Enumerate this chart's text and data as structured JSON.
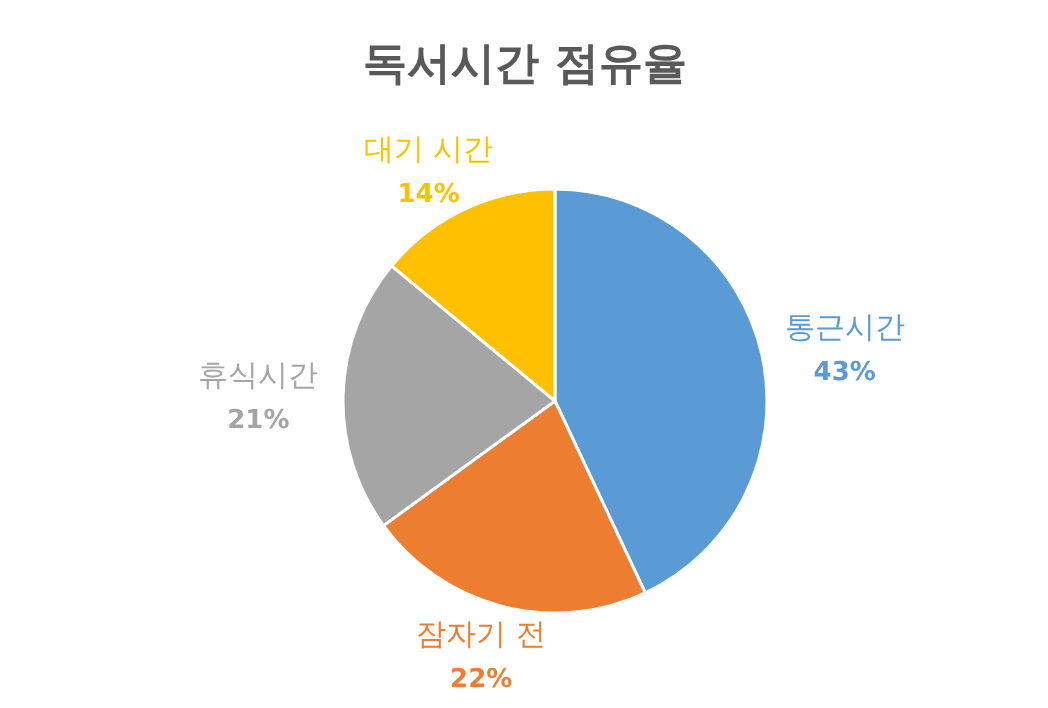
{
  "chart_data": {
    "type": "pie",
    "title": "독서시간 점유율",
    "categories": [
      "통근시간",
      "잠자기 전",
      "휴식시간",
      "대기 시간"
    ],
    "values": [
      43,
      22,
      21,
      14
    ],
    "colors": [
      "#5b9bd5",
      "#ed7d31",
      "#a5a5a5",
      "#ffc000"
    ],
    "value_labels": [
      "43%",
      "22%",
      "21%",
      "14%"
    ]
  }
}
